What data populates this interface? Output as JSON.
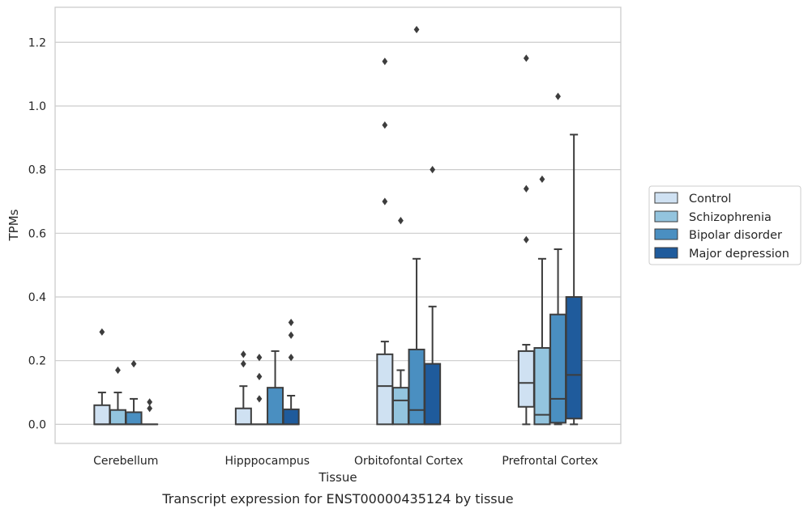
{
  "chart_data": {
    "type": "box",
    "caption": "Transcript expression for ENST00000435124 by tissue",
    "xlabel": "Tissue",
    "ylabel": "TPMs",
    "ylim": [
      -0.06,
      1.31
    ],
    "yticks": [
      0.0,
      0.2,
      0.4,
      0.6,
      0.8,
      1.0,
      1.2
    ],
    "ytick_labels": [
      "0.0",
      "0.2",
      "0.4",
      "0.6",
      "0.8",
      "1.0",
      "1.2"
    ],
    "grid": "horizontal",
    "legend_position": "right",
    "categories": [
      "Cerebellum",
      "Hipppocampus",
      "Orbitofontal Cortex",
      "Prefrontal Cortex"
    ],
    "series": [
      {
        "name": "Control",
        "color": "#cfe1f2",
        "boxes": [
          {
            "whisker_low": 0.0,
            "q1": 0.0,
            "median": 0.0,
            "q3": 0.06,
            "whisker_high": 0.1,
            "outliers": [
              0.29
            ]
          },
          {
            "whisker_low": 0.0,
            "q1": 0.0,
            "median": 0.0,
            "q3": 0.05,
            "whisker_high": 0.12,
            "outliers": [
              0.19,
              0.22
            ]
          },
          {
            "whisker_low": 0.0,
            "q1": 0.0,
            "median": 0.12,
            "q3": 0.22,
            "whisker_high": 0.26,
            "outliers": [
              0.7,
              0.94,
              1.14
            ]
          },
          {
            "whisker_low": 0.0,
            "q1": 0.055,
            "median": 0.13,
            "q3": 0.23,
            "whisker_high": 0.25,
            "outliers": [
              0.58,
              0.74,
              1.15
            ]
          }
        ]
      },
      {
        "name": "Schizophrenia",
        "color": "#93c4de",
        "boxes": [
          {
            "whisker_low": 0.0,
            "q1": 0.0,
            "median": 0.0,
            "q3": 0.045,
            "whisker_high": 0.1,
            "outliers": [
              0.17
            ]
          },
          {
            "whisker_low": 0.0,
            "q1": 0.0,
            "median": 0.0,
            "q3": 0.0,
            "whisker_high": 0.0,
            "outliers": [
              0.08,
              0.15,
              0.21
            ]
          },
          {
            "whisker_low": 0.0,
            "q1": 0.0,
            "median": 0.075,
            "q3": 0.115,
            "whisker_high": 0.17,
            "outliers": [
              0.64
            ]
          },
          {
            "whisker_low": 0.0,
            "q1": 0.0,
            "median": 0.03,
            "q3": 0.24,
            "whisker_high": 0.52,
            "outliers": [
              0.77
            ]
          }
        ]
      },
      {
        "name": "Bipolar disorder",
        "color": "#4a8fc1",
        "boxes": [
          {
            "whisker_low": 0.0,
            "q1": 0.0,
            "median": 0.0,
            "q3": 0.038,
            "whisker_high": 0.08,
            "outliers": [
              0.19
            ]
          },
          {
            "whisker_low": 0.0,
            "q1": 0.0,
            "median": 0.0,
            "q3": 0.115,
            "whisker_high": 0.23,
            "outliers": []
          },
          {
            "whisker_low": 0.0,
            "q1": 0.0,
            "median": 0.045,
            "q3": 0.235,
            "whisker_high": 0.52,
            "outliers": [
              1.24
            ]
          },
          {
            "whisker_low": 0.0,
            "q1": 0.005,
            "median": 0.08,
            "q3": 0.345,
            "whisker_high": 0.55,
            "outliers": [
              1.03
            ]
          }
        ]
      },
      {
        "name": "Major depression",
        "color": "#1f5b9c",
        "boxes": [
          {
            "whisker_low": 0.0,
            "q1": 0.0,
            "median": 0.0,
            "q3": 0.0,
            "whisker_high": 0.0,
            "outliers": [
              0.05,
              0.07
            ]
          },
          {
            "whisker_low": 0.0,
            "q1": 0.0,
            "median": 0.0,
            "q3": 0.047,
            "whisker_high": 0.09,
            "outliers": [
              0.21,
              0.28,
              0.32
            ]
          },
          {
            "whisker_low": 0.0,
            "q1": 0.0,
            "median": 0.0,
            "q3": 0.19,
            "whisker_high": 0.37,
            "outliers": [
              0.8
            ]
          },
          {
            "whisker_low": 0.0,
            "q1": 0.018,
            "median": 0.155,
            "q3": 0.4,
            "whisker_high": 0.91,
            "outliers": []
          }
        ]
      }
    ]
  }
}
